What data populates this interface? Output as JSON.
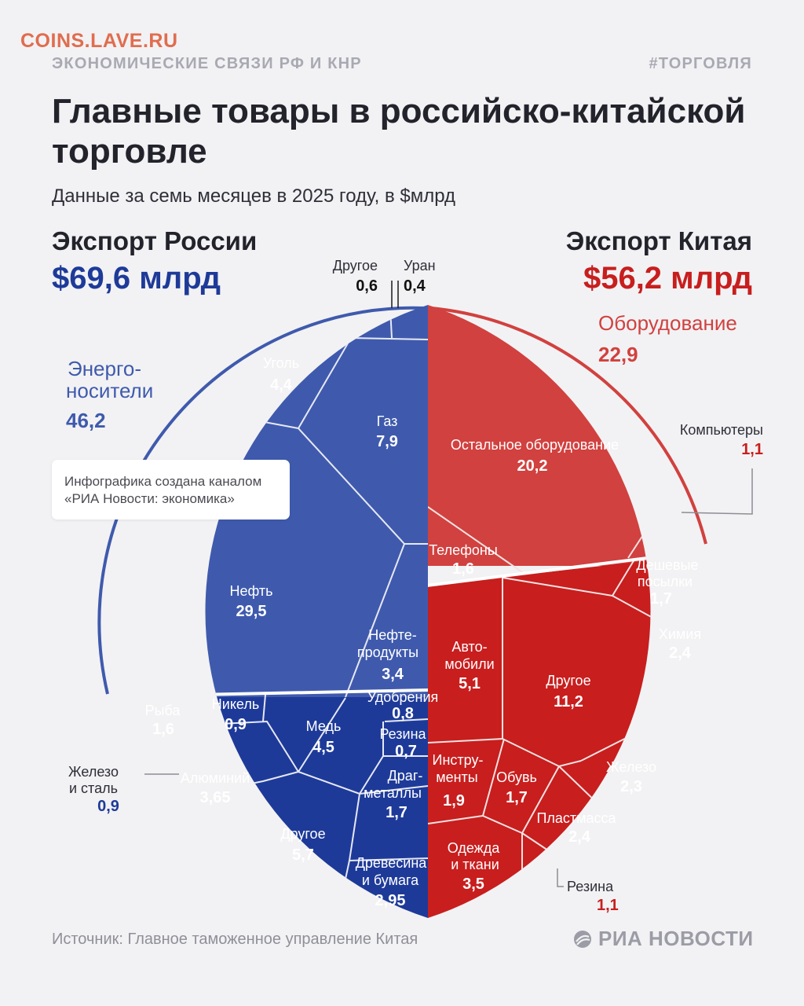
{
  "watermark": "COINS.LAVE.RU",
  "kicker": "ЭКОНОМИЧЕСКИЕ СВЯЗИ РФ И КНР",
  "hashtag": "#ТОРГОВЛЯ",
  "title": "Главные товары в российско-китайской торговле",
  "subtitle": "Данные за семь месяцев в 2025 году, в $млрд",
  "credit": "Инфографика создана каналом «РИА Новости: экономика»",
  "source": "Источник: Главное таможенное управление Китая",
  "logo": "РИА НОВОСТИ",
  "colors": {
    "russia": "#1e3a99",
    "russia_energy": "#3f5aad",
    "china": "#c81e1e",
    "china_equipment": "#d1413f",
    "title": "#22232b",
    "muted": "#a9a9b3"
  },
  "chart_data": {
    "type": "voronoi-treemap",
    "unit": "$млрд",
    "russia": {
      "label": "Экспорт России",
      "total": "$69,6 млрд",
      "groups": [
        {
          "name": "Энерго-носители",
          "value": "46,2",
          "items": [
            {
              "name": "Нефть",
              "value": "29,5"
            },
            {
              "name": "Газ",
              "value": "7,9"
            },
            {
              "name": "Уголь",
              "value": "4,4"
            },
            {
              "name": "Нефте-продукты",
              "value": "3,4"
            },
            {
              "name": "Другое",
              "value": "0,6"
            },
            {
              "name": "Уран",
              "value": "0,4"
            }
          ]
        },
        {
          "name": "",
          "value": "",
          "items": [
            {
              "name": "Другое",
              "value": "5,7"
            },
            {
              "name": "Медь",
              "value": "4,5"
            },
            {
              "name": "Алюминий",
              "value": "3,65"
            },
            {
              "name": "Древесина и бумага",
              "value": "2,95"
            },
            {
              "name": "Драг-металлы",
              "value": "1,7"
            },
            {
              "name": "Рыба",
              "value": "1,6"
            },
            {
              "name": "Никель",
              "value": "0,9"
            },
            {
              "name": "Железо и сталь",
              "value": "0,9"
            },
            {
              "name": "Удобрения",
              "value": "0,8"
            },
            {
              "name": "Резина",
              "value": "0,7"
            }
          ]
        }
      ]
    },
    "china": {
      "label": "Экспорт Китая",
      "total": "$56,2 млрд",
      "groups": [
        {
          "name": "Оборудование",
          "value": "22,9",
          "items": [
            {
              "name": "Остальное оборудование",
              "value": "20,2"
            },
            {
              "name": "Телефоны",
              "value": "1,6"
            },
            {
              "name": "Компьютеры",
              "value": "1,1"
            }
          ]
        },
        {
          "name": "",
          "value": "",
          "items": [
            {
              "name": "Другое",
              "value": "11,2"
            },
            {
              "name": "Авто-мобили",
              "value": "5,1"
            },
            {
              "name": "Одежда и ткани",
              "value": "3,5"
            },
            {
              "name": "Химия",
              "value": "2,4"
            },
            {
              "name": "Пластмасса",
              "value": "2,4"
            },
            {
              "name": "Железо",
              "value": "2,3"
            },
            {
              "name": "Инстру-менты",
              "value": "1,9"
            },
            {
              "name": "Дешевые посылки",
              "value": "1,7"
            },
            {
              "name": "Обувь",
              "value": "1,7"
            },
            {
              "name": "Резина",
              "value": "1,1"
            }
          ]
        }
      ]
    }
  }
}
